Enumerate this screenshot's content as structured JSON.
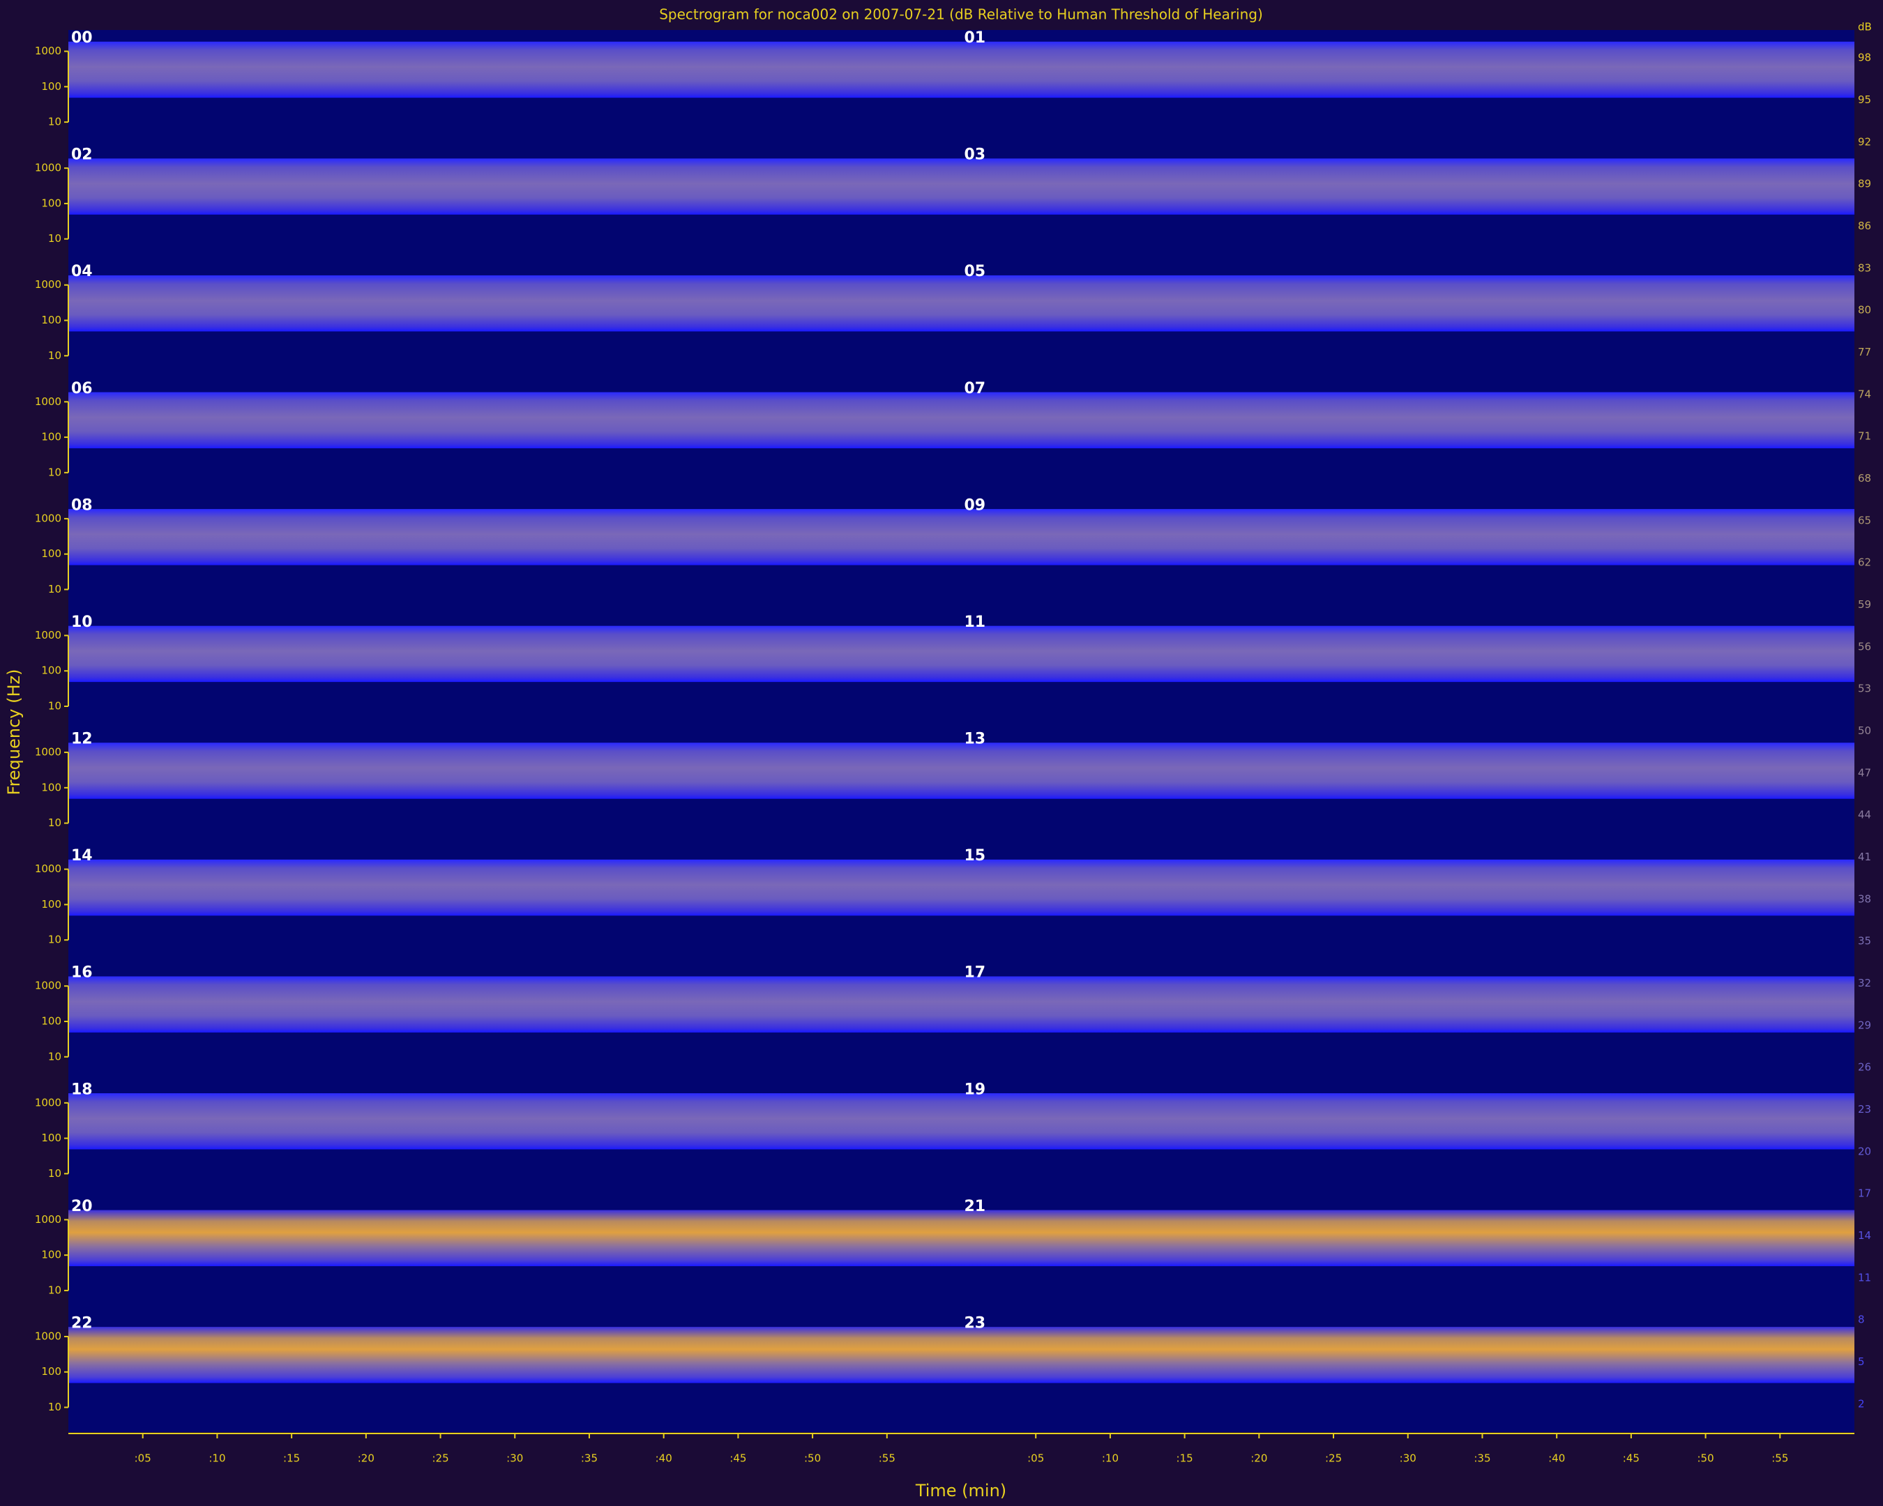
{
  "chart_data": {
    "type": "spectrogram",
    "title": "Spectrogram for noca002 on 2007-07-21 (dB Relative to Human Threshold of Hearing)",
    "x_label": "Time (min)",
    "y_label": "Frequency (Hz)",
    "rows": [
      "00",
      "01",
      "02",
      "03",
      "04",
      "05",
      "06",
      "07",
      "08",
      "09",
      "10",
      "11",
      "12",
      "13",
      "14",
      "15",
      "16",
      "17",
      "18",
      "19",
      "20",
      "21",
      "22",
      "23"
    ],
    "xlim": [
      0,
      60
    ],
    "xticks": [
      {
        "value": 5,
        "label": ":05"
      },
      {
        "value": 10,
        "label": ":10"
      },
      {
        "value": 15,
        "label": ":15"
      },
      {
        "value": 20,
        "label": ":20"
      },
      {
        "value": 25,
        "label": ":25"
      },
      {
        "value": 30,
        "label": ":30"
      },
      {
        "value": 35,
        "label": ":35"
      },
      {
        "value": 40,
        "label": ":40"
      },
      {
        "value": 45,
        "label": ":45"
      },
      {
        "value": 50,
        "label": ":50"
      },
      {
        "value": 55,
        "label": ":55"
      }
    ],
    "ylim": [
      2,
      4000
    ],
    "yticks": [
      10,
      100,
      1000
    ],
    "log_y": true,
    "colorbar_label": "dB",
    "clim": [
      0,
      100
    ],
    "cticks": [
      98,
      95,
      92,
      89,
      86,
      83,
      80,
      77,
      74,
      71,
      68,
      65,
      62,
      59,
      56,
      53,
      50,
      47,
      44,
      41,
      38,
      35,
      32,
      29,
      26,
      23,
      20,
      17,
      14,
      11,
      8,
      5,
      2
    ]
  }
}
